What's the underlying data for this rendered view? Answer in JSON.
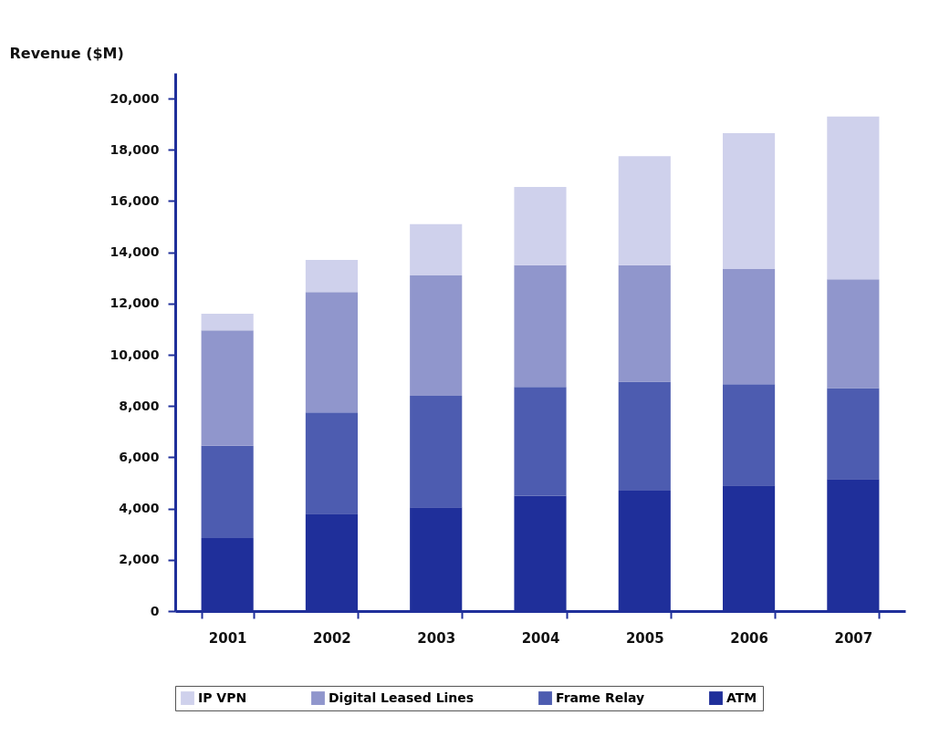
{
  "chart_data": {
    "type": "bar",
    "ylabel": "Revenue ($M)",
    "categories": [
      "2001",
      "2002",
      "2003",
      "2004",
      "2005",
      "2006",
      "2007"
    ],
    "series": [
      {
        "name": "ATM",
        "color": "#1f2f9a",
        "values": [
          2850,
          3800,
          4050,
          4500,
          4700,
          4900,
          5150
        ]
      },
      {
        "name": "Frame Relay",
        "color": "#4d5cb0",
        "values": [
          3600,
          3950,
          4350,
          4250,
          4250,
          3950,
          3550
        ]
      },
      {
        "name": "Digital Leased Lines",
        "color": "#9096cc",
        "values": [
          4500,
          4700,
          4700,
          4750,
          4550,
          4500,
          4250
        ]
      },
      {
        "name": "IP VPN",
        "color": "#cfd1ec",
        "values": [
          650,
          1250,
          2000,
          3050,
          4250,
          5300,
          6350
        ]
      }
    ],
    "stacked": true,
    "ylim": [
      0,
      21000
    ],
    "yticks": [
      0,
      {
        "value": 2000,
        "label": "2,000"
      },
      {
        "value": 4000,
        "label": "4,000"
      },
      {
        "value": 6000,
        "label": "6,000"
      },
      {
        "value": 8000,
        "label": "8,000"
      },
      {
        "value": 10000,
        "label": "10,000"
      },
      {
        "value": 12000,
        "label": "12,000"
      },
      {
        "value": 14000,
        "label": "14,000"
      },
      {
        "value": 16000,
        "label": "16,000"
      },
      {
        "value": 18000,
        "label": "18,000"
      },
      {
        "value": 20000,
        "label": "20,000"
      }
    ],
    "grid": false,
    "legend": "bottom"
  }
}
